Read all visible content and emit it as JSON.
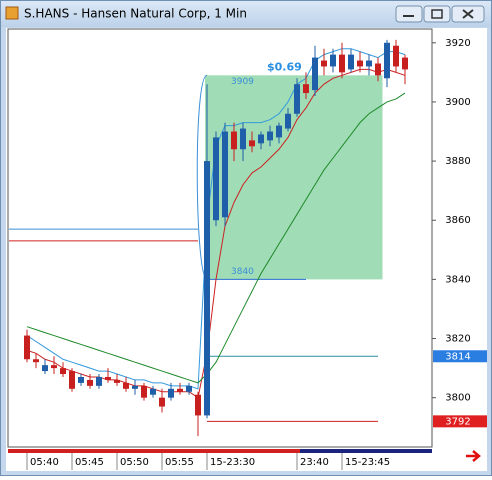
{
  "window": {
    "title": "S.HANS - Hansen Natural Corp, 1 Min"
  },
  "chart_data": {
    "type": "candlestick",
    "categories": [
      "05:40",
      null,
      null,
      null,
      null,
      "05:45",
      null,
      null,
      null,
      null,
      "05:50",
      null,
      null,
      null,
      null,
      "05:55",
      null,
      null,
      null,
      null,
      "15-23:30",
      null,
      null,
      null,
      null,
      null,
      null,
      null,
      null,
      null,
      "23:40",
      null,
      null,
      null,
      null,
      "15-23:45",
      null,
      null,
      null,
      null,
      null,
      null,
      null
    ],
    "open": [
      3821,
      3813,
      3809,
      3811,
      3810,
      3809,
      3805,
      3806,
      3804,
      3807,
      3806,
      3805,
      3803,
      3804,
      3801,
      3800,
      3800,
      3803,
      3802,
      3801,
      3794,
      3860,
      3861,
      3890,
      3884,
      3887,
      3886,
      3887,
      3888,
      3891,
      3896,
      3906,
      3904,
      3914,
      3912,
      3916,
      3911,
      3914,
      3912,
      3913,
      3908,
      3919,
      3915
    ],
    "high": [
      3823,
      3815,
      3813,
      3814,
      3812,
      3810,
      3808,
      3808,
      3808,
      3810,
      3808,
      3807,
      3806,
      3805,
      3804,
      3803,
      3805,
      3805,
      3805,
      3802,
      3906,
      3890,
      3893,
      3893,
      3893,
      3890,
      3890,
      3892,
      3893,
      3898,
      3908,
      3910,
      3919,
      3918,
      3918,
      3920,
      3918,
      3917,
      3916,
      3915,
      3921,
      3921,
      3916
    ],
    "low": [
      3812,
      3810,
      3808,
      3808,
      3807,
      3802,
      3804,
      3803,
      3803,
      3805,
      3804,
      3802,
      3801,
      3799,
      3800,
      3795,
      3799,
      3801,
      3801,
      3787,
      3793,
      3858,
      3858,
      3880,
      3880,
      3883,
      3884,
      3885,
      3886,
      3890,
      3895,
      3901,
      3902,
      3909,
      3910,
      3908,
      3910,
      3910,
      3909,
      3907,
      3905,
      3910,
      3906
    ],
    "close": [
      3813,
      3812,
      3811,
      3810,
      3808,
      3803,
      3807,
      3804,
      3807,
      3806,
      3805,
      3803,
      3804,
      3800,
      3803,
      3797,
      3803,
      3802,
      3804,
      3794,
      3880,
      3888,
      3890,
      3884,
      3891,
      3885,
      3889,
      3890,
      3892,
      3896,
      3906,
      3903,
      3915,
      3912,
      3916,
      3910,
      3916,
      3912,
      3914,
      3909,
      3920,
      3912,
      3911
    ],
    "up_color": "#1f5ea8",
    "down_color": "#c8201e",
    "overlays": [
      {
        "color": "#3399dd",
        "values": [
          3821,
          3819,
          3817,
          3815,
          3813,
          3812,
          3811,
          3810,
          3809,
          3809,
          3808,
          3807,
          3806,
          3806,
          3805,
          3805,
          3804,
          3804,
          3804,
          3803,
          3860,
          3885,
          3892,
          3892,
          3893,
          3893,
          3893,
          3894,
          3896,
          3900,
          3906,
          3908,
          3914,
          3916,
          3917,
          3918,
          3918,
          3917,
          3916,
          3915,
          3917,
          3917,
          3916
        ]
      },
      {
        "color": "#cc2222",
        "values": [
          3816,
          3815,
          3813,
          3812,
          3810,
          3809,
          3808,
          3807,
          3807,
          3806,
          3806,
          3805,
          3804,
          3804,
          3803,
          3802,
          3802,
          3802,
          3802,
          3800,
          3815,
          3840,
          3858,
          3866,
          3872,
          3876,
          3878,
          3881,
          3884,
          3888,
          3894,
          3898,
          3903,
          3906,
          3908,
          3909,
          3910,
          3911,
          3911,
          3910,
          3911,
          3910,
          3909
        ]
      },
      {
        "color": "#1f8a2a",
        "values": [
          3824,
          3823,
          3822,
          3821,
          3820,
          3819,
          3818,
          3817,
          3816,
          3815,
          3814,
          3813,
          3812,
          3811,
          3810,
          3809,
          3808,
          3807,
          3806,
          3805,
          3808,
          3812,
          3818,
          3824,
          3830,
          3836,
          3842,
          3847,
          3852,
          3857,
          3862,
          3867,
          3872,
          3877,
          3881,
          3885,
          3889,
          3893,
          3896,
          3898,
          3900,
          3901,
          3903
        ]
      }
    ],
    "zone": {
      "top": 3909,
      "bottom": 3840,
      "x0": 20,
      "x1": 39.5,
      "color": "#8fd6a9",
      "label": "$0.69"
    },
    "levels": [
      {
        "value": 3857,
        "color": "#3a8fd8",
        "x0": -2,
        "x1": 19
      },
      {
        "value": 3853,
        "color": "#d02020",
        "x0": -2,
        "x1": 19
      },
      {
        "value": 3840,
        "color": "#2a6fd0",
        "x0": 20,
        "x1": 31
      },
      {
        "value": 3814,
        "color": "#2a8fa0",
        "x0": 20,
        "x1": 39,
        "marker": "#2a7de1"
      },
      {
        "value": 3792,
        "color": "#d02020",
        "x0": 20,
        "x1": 39,
        "marker": "#e02020"
      }
    ],
    "ylim": [
      3784,
      3925
    ],
    "yticks": [
      3800,
      3820,
      3840,
      3860,
      3880,
      3900,
      3920
    ]
  }
}
